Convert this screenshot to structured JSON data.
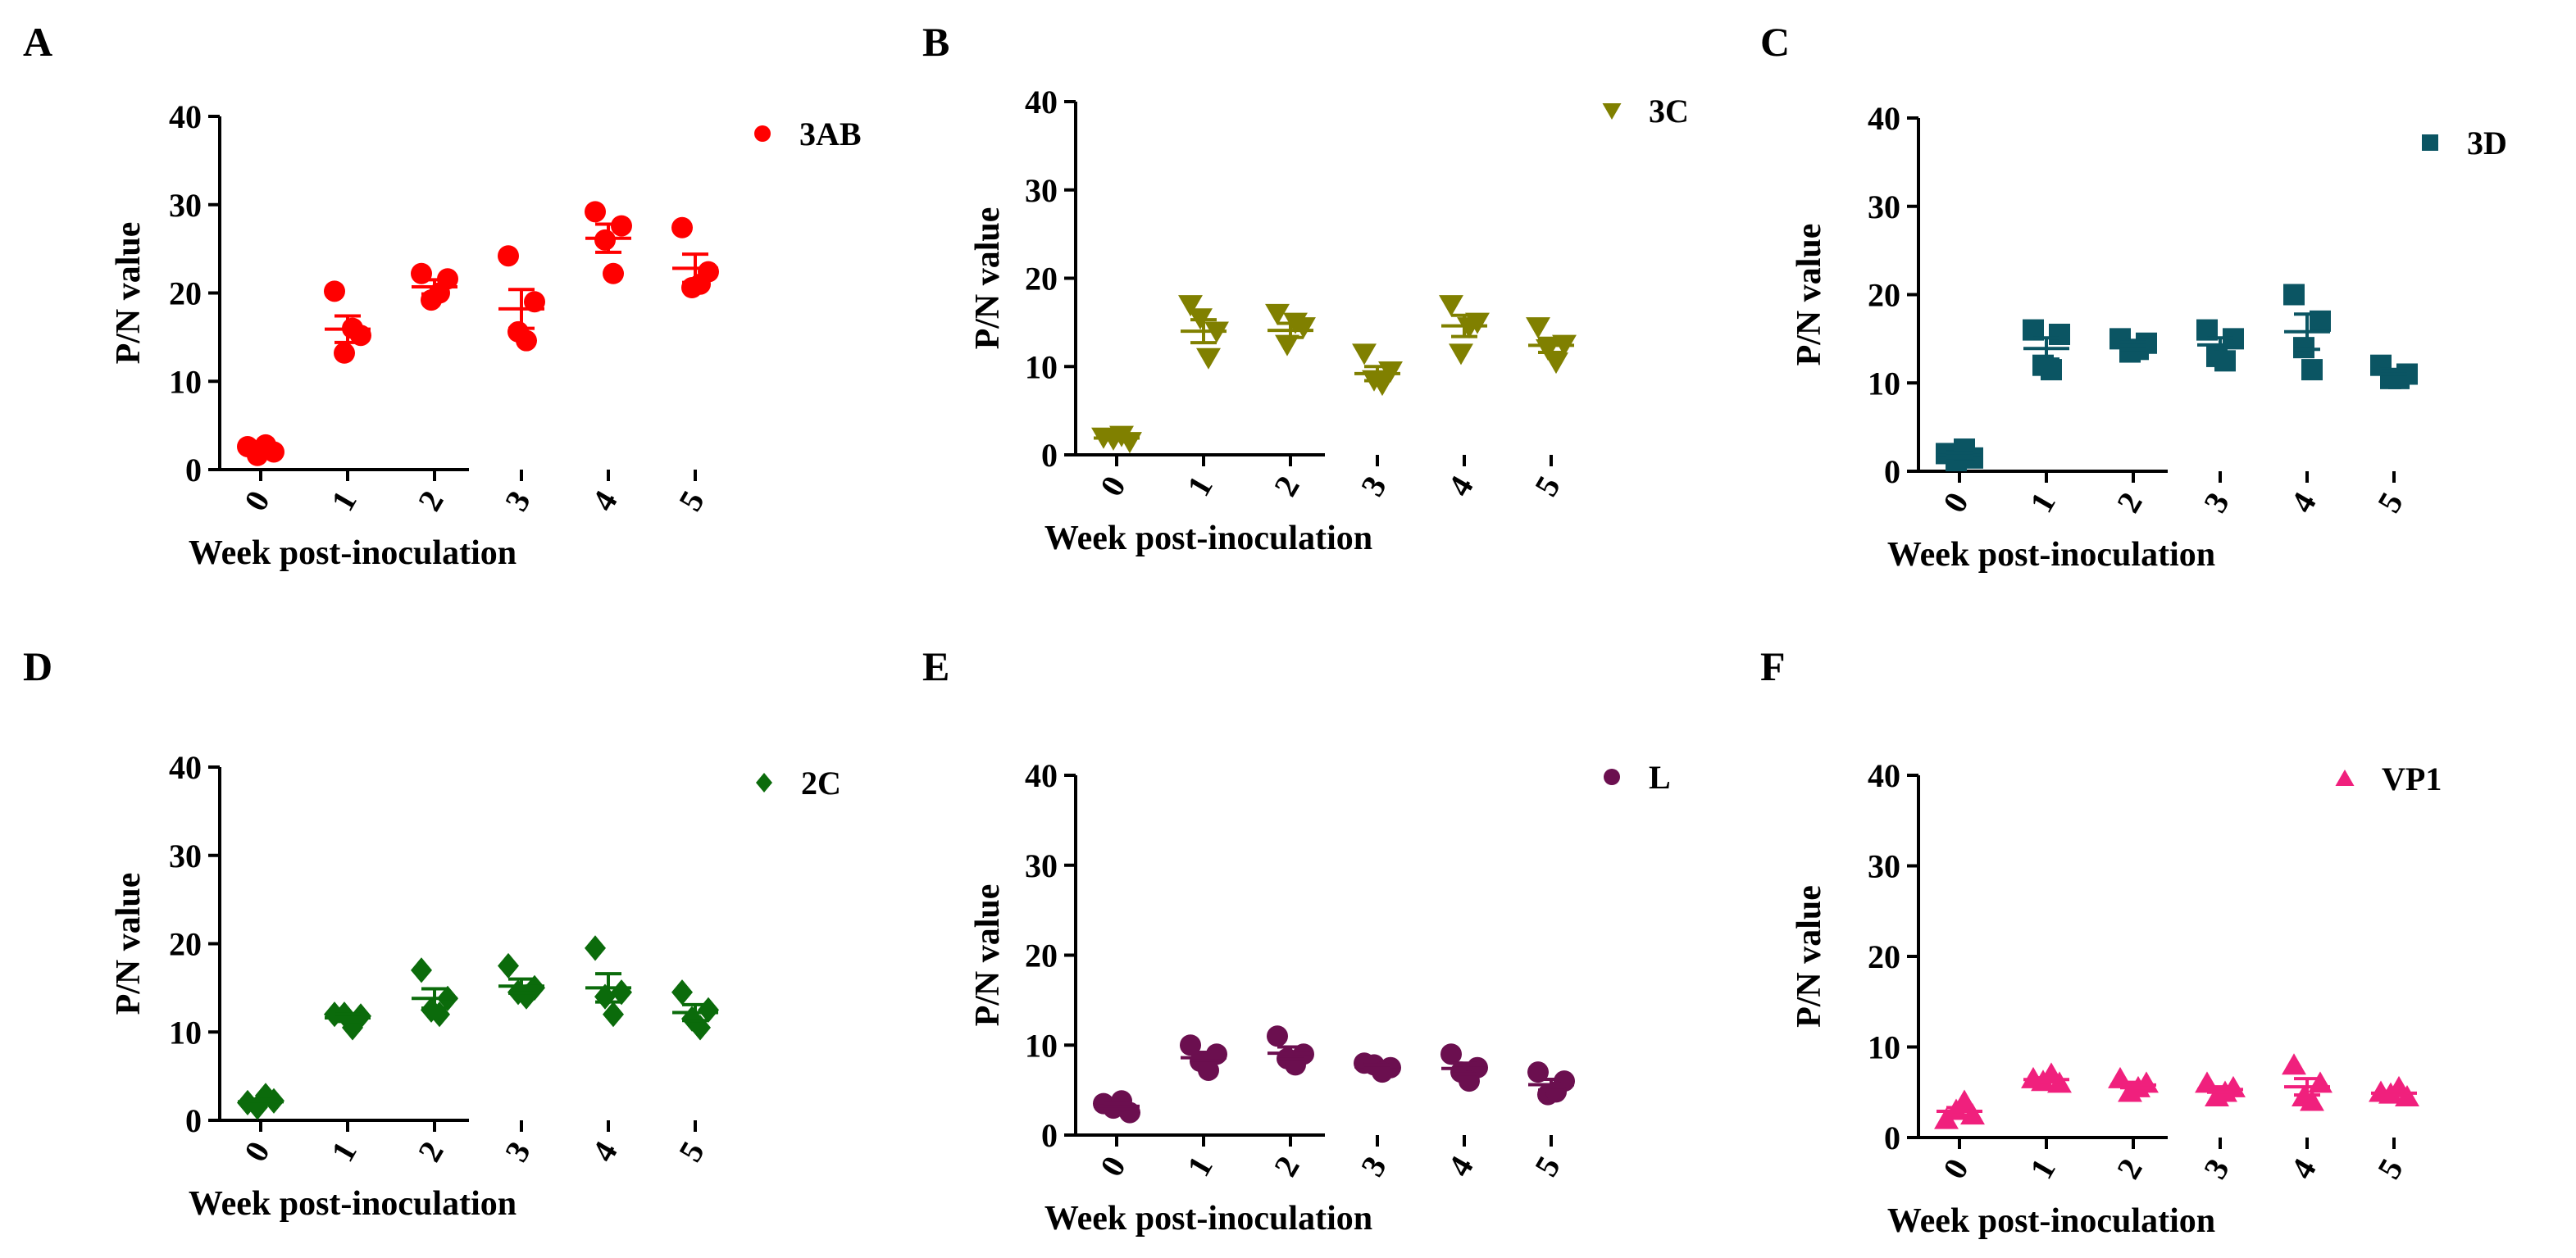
{
  "chart_data": [
    {
      "panel": "A",
      "type": "scatter",
      "marker": "circle",
      "color": "#ff0000",
      "legend": "3AB",
      "ylabel": "P/N value",
      "xlabel": "Week  post-inoculation",
      "ylim": [
        0,
        40
      ],
      "yticks": [
        "0",
        "10",
        "20",
        "30",
        "40"
      ],
      "categories": [
        "0",
        "1",
        "2",
        "3",
        "4",
        "5"
      ],
      "points": [
        [
          2.6,
          2.0,
          1.6,
          2.8
        ],
        [
          20.2,
          15.2,
          13.2,
          16.0
        ],
        [
          22.2,
          21.6,
          19.2,
          20.0
        ],
        [
          24.2,
          19.0,
          15.6,
          14.6
        ],
        [
          29.2,
          27.6,
          26.0,
          22.2
        ],
        [
          27.4,
          22.4,
          20.6,
          21.0
        ]
      ],
      "means": [
        2.3,
        15.9,
        20.7,
        18.2,
        26.2,
        22.8
      ],
      "sems": [
        0.3,
        1.5,
        0.8,
        2.2,
        1.6,
        1.6
      ]
    },
    {
      "panel": "B",
      "type": "scatter",
      "marker": "triangle-down",
      "color": "#808000",
      "legend": "3C",
      "ylabel": "P/N value",
      "xlabel": "Week  post-inoculation",
      "ylim": [
        0,
        40
      ],
      "yticks": [
        "0",
        "10",
        "20",
        "30",
        "40"
      ],
      "categories": [
        "0",
        "1",
        "2",
        "3",
        "4",
        "5"
      ],
      "points": [
        [
          2.0,
          1.5,
          1.8,
          2.2
        ],
        [
          17.0,
          14.0,
          15.5,
          11.0
        ],
        [
          16.0,
          14.5,
          12.5,
          15.0
        ],
        [
          11.5,
          9.5,
          8.5,
          8.0
        ],
        [
          17.0,
          15.0,
          11.5,
          14.5
        ],
        [
          14.5,
          12.5,
          12.0,
          10.5
        ]
      ],
      "means": [
        1.9,
        14.0,
        14.1,
        9.2,
        14.6,
        12.4
      ],
      "sems": [
        0.2,
        1.3,
        0.8,
        0.8,
        1.2,
        0.8
      ]
    },
    {
      "panel": "C",
      "type": "scatter",
      "marker": "square",
      "color": "#0b5563",
      "legend": "3D",
      "ylabel": "P/N value",
      "xlabel": "Week  post-inoculation",
      "ylim": [
        0,
        40
      ],
      "yticks": [
        "0",
        "10",
        "20",
        "30",
        "40"
      ],
      "categories": [
        "0",
        "1",
        "2",
        "3",
        "4",
        "5"
      ],
      "points": [
        [
          2.0,
          1.5,
          1.2,
          2.5
        ],
        [
          16.0,
          15.5,
          12.0,
          11.5
        ],
        [
          15.0,
          14.5,
          13.5,
          13.8
        ],
        [
          16.0,
          15.0,
          13.0,
          12.5
        ],
        [
          20.0,
          17.0,
          14.0,
          11.5
        ],
        [
          12.0,
          11.0,
          10.5,
          10.5
        ]
      ],
      "means": [
        1.8,
        13.9,
        14.2,
        14.3,
        15.8,
        11.0
      ],
      "sems": [
        0.3,
        1.2,
        0.4,
        0.8,
        2.0,
        0.4
      ]
    },
    {
      "panel": "D",
      "type": "scatter",
      "marker": "diamond",
      "color": "#0b6b0b",
      "legend": "2C",
      "ylabel": "P/N  value",
      "xlabel": "Week  post-inoculation",
      "ylim": [
        0,
        40
      ],
      "yticks": [
        "0",
        "10",
        "20",
        "30",
        "40"
      ],
      "categories": [
        "0",
        "1",
        "2",
        "3",
        "4",
        "5"
      ],
      "points": [
        [
          2.0,
          2.2,
          1.5,
          2.8
        ],
        [
          12.0,
          11.8,
          12.0,
          10.5
        ],
        [
          17.0,
          13.8,
          12.5,
          12.0
        ],
        [
          17.5,
          15.0,
          14.5,
          14.0
        ],
        [
          19.5,
          14.5,
          14.0,
          12.0
        ],
        [
          14.5,
          12.5,
          11.5,
          10.5
        ]
      ],
      "means": [
        2.1,
        11.6,
        13.8,
        15.2,
        15.0,
        12.2
      ],
      "sems": [
        0.3,
        0.4,
        1.1,
        0.8,
        1.6,
        0.9
      ]
    },
    {
      "panel": "E",
      "type": "scatter",
      "marker": "circle",
      "color": "#6b0f4f",
      "legend": "L",
      "ylabel": "P/N  value",
      "xlabel": "Week  post-inoculation",
      "ylim": [
        0,
        40
      ],
      "yticks": [
        "0",
        "10",
        "20",
        "30",
        "40"
      ],
      "categories": [
        "0",
        "1",
        "2",
        "3",
        "4",
        "5"
      ],
      "points": [
        [
          3.5,
          2.5,
          3.0,
          3.8
        ],
        [
          10.0,
          9.0,
          8.2,
          7.2
        ],
        [
          11.0,
          9.0,
          8.5,
          7.8
        ],
        [
          8.0,
          7.5,
          7.8,
          7.0
        ],
        [
          9.0,
          7.5,
          7.0,
          6.0
        ],
        [
          7.0,
          6.0,
          4.5,
          4.8
        ]
      ],
      "means": [
        3.2,
        8.6,
        9.1,
        7.6,
        7.4,
        5.6
      ],
      "sems": [
        0.3,
        0.6,
        0.7,
        0.2,
        0.6,
        0.6
      ]
    },
    {
      "panel": "F",
      "type": "scatter",
      "marker": "triangle-up",
      "color": "#f0207d",
      "legend": "VP1",
      "ylabel": "P/N  value",
      "xlabel": "Week  post-inoculation",
      "ylim": [
        0,
        40
      ],
      "yticks": [
        "0",
        "10",
        "20",
        "30",
        "40"
      ],
      "categories": [
        "0",
        "1",
        "2",
        "3",
        "4",
        "5"
      ],
      "points": [
        [
          2.0,
          2.5,
          3.0,
          4.0
        ],
        [
          6.5,
          6.0,
          6.2,
          7.0
        ],
        [
          6.5,
          6.0,
          5.0,
          5.5
        ],
        [
          6.0,
          5.5,
          4.5,
          5.0
        ],
        [
          8.0,
          6.0,
          4.5,
          4.0
        ],
        [
          5.0,
          4.5,
          4.8,
          5.5
        ]
      ],
      "means": [
        2.9,
        6.4,
        5.8,
        5.3,
        5.6,
        4.9
      ],
      "sems": [
        0.4,
        0.2,
        0.3,
        0.3,
        0.9,
        0.2
      ]
    }
  ]
}
